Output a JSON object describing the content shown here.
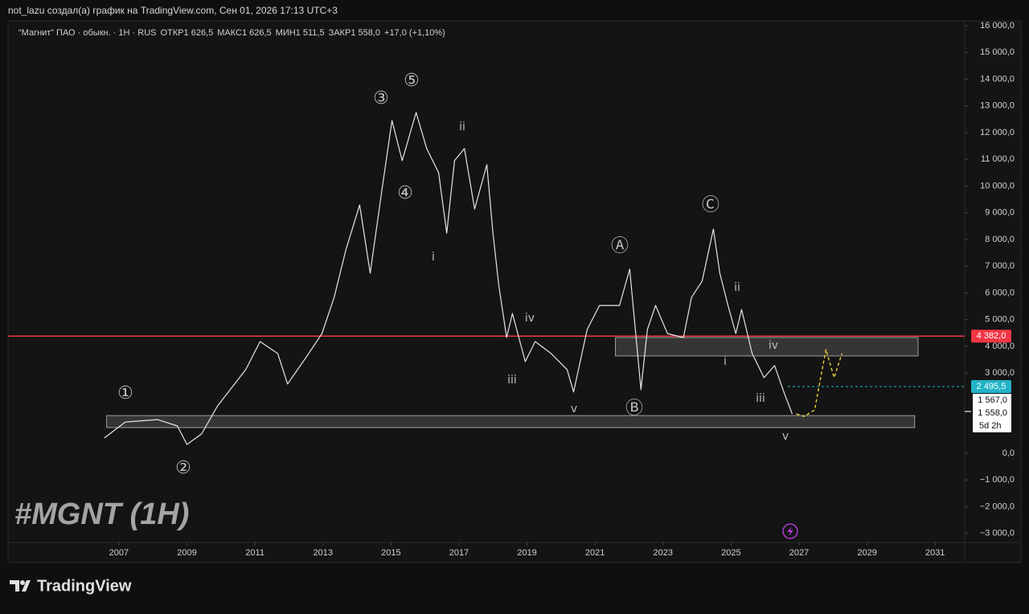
{
  "header": "not_lazu создал(а) график на TradingView.com, Сен 01, 2026 17:13 UTC+3",
  "chart_data": {
    "type": "line",
    "title": "“Магнит” ПАО · обыкн. · 1H · RUS",
    "ohlc": [
      {
        "label": "ОТКР",
        "value": "1 626,5"
      },
      {
        "label": "МАКС",
        "value": "1 626,5"
      },
      {
        "label": "МИН",
        "value": "1 511,5"
      },
      {
        "label": "ЗАКР",
        "value": "1 558,0"
      }
    ],
    "change": "+17,0 (+1,10%)",
    "watermark": "#MGNT (1H)",
    "xlim": [
      2003.74,
      2031.87
    ],
    "xticks": [
      2007,
      2009,
      2011,
      2013,
      2015,
      2017,
      2019,
      2021,
      2023,
      2025,
      2027,
      2029,
      2031
    ],
    "ylim": [
      -3340,
      16180
    ],
    "yticks": [
      {
        "value": 16000,
        "label": "16 000,0"
      },
      {
        "value": 15000,
        "label": "15 000,0"
      },
      {
        "value": 14000,
        "label": "14 000,0"
      },
      {
        "value": 13000,
        "label": "13 000,0"
      },
      {
        "value": 12000,
        "label": "12 000,0"
      },
      {
        "value": 11000,
        "label": "11 000,0"
      },
      {
        "value": 10000,
        "label": "10 000,0"
      },
      {
        "value": 9000,
        "label": "9 000,0"
      },
      {
        "value": 8000,
        "label": "8 000,0"
      },
      {
        "value": 7000,
        "label": "7 000,0"
      },
      {
        "value": 6000,
        "label": "6 000,0"
      },
      {
        "value": 5000,
        "label": "5 000,0"
      },
      {
        "value": 4000,
        "label": "4 000,0"
      },
      {
        "value": 3000,
        "label": "3 000,0"
      },
      {
        "value": {
          "value": 0,
          "label": "0,0"
        }
      },
      {
        "value": -1000,
        "label": "−1 000,0"
      },
      {
        "value": -2000,
        "label": "−2 000,0"
      },
      {
        "value": -3000,
        "label": "−3 000,0"
      }
    ],
    "series": [
      {
        "color": "#e6e6e6",
        "dashed": false,
        "x": [
          2006.57,
          2007.19,
          2008.13,
          2008.72,
          2009.0,
          2009.43,
          2009.9,
          2010.73,
          2011.15,
          2011.67,
          2011.96,
          2012.5,
          2012.97,
          2013.33,
          2013.68,
          2014.08,
          2014.39,
          2014.74,
          2015.03,
          2015.33,
          2015.74,
          2016.05,
          2016.4,
          2016.64,
          2016.87,
          2017.16,
          2017.46,
          2017.82,
          2018.0,
          2018.17,
          2018.4,
          2018.57,
          2018.95,
          2019.24,
          2019.71,
          2020.18,
          2020.37,
          2020.77,
          2021.13,
          2021.72,
          2022.02,
          2022.35,
          2022.54,
          2022.78,
          2023.13,
          2023.6,
          2023.84,
          2024.15,
          2024.48,
          2024.67,
          2024.91,
          2025.14,
          2025.31,
          2025.62,
          2025.97,
          2026.28,
          2026.57,
          2026.8
        ],
        "values": [
          570,
          1170,
          1260,
          1020,
          330,
          720,
          1770,
          3130,
          4180,
          3730,
          2590,
          3580,
          4480,
          5840,
          7640,
          9290,
          6740,
          9900,
          12450,
          10950,
          12750,
          11400,
          10500,
          8240,
          10950,
          11400,
          9140,
          10800,
          8240,
          6290,
          4330,
          5230,
          3430,
          4180,
          3730,
          3130,
          2290,
          4630,
          5530,
          5530,
          6890,
          2380,
          4630,
          5530,
          4480,
          4330,
          5840,
          6440,
          8390,
          6740,
          5530,
          4480,
          5380,
          3730,
          2830,
          3280,
          2230,
          1470
        ]
      },
      {
        "color": "#e8d23a",
        "dashed": true,
        "x": [
          2026.92,
          2027.15,
          2027.46,
          2027.79,
          2028.03,
          2028.26
        ],
        "values": [
          1470,
          1380,
          1620,
          3880,
          2830,
          3730
        ]
      }
    ],
    "hlines": [
      {
        "value": 4382,
        "label": "4 382,0",
        "color": "#f23645"
      },
      {
        "value": 2495.5,
        "label": "2 495,5",
        "color": "#22b4c8"
      }
    ],
    "price_labels": [
      {
        "value": 1567,
        "label": "1 567,0"
      },
      {
        "value": 1558,
        "label": "1 558,0"
      }
    ],
    "countdown": "5d 2h",
    "zones": [
      {
        "x": [
          2021.6,
          2030.5
        ],
        "y": [
          3640,
          4330
        ]
      },
      {
        "x": [
          2006.64,
          2030.4
        ],
        "y": [
          960,
          1410
        ]
      }
    ],
    "annotations": [
      "①",
      "②",
      "③",
      "④",
      "⑤",
      "i",
      "ii",
      "iii",
      "iv",
      "v",
      "Ⓐ",
      "Ⓑ",
      "Ⓒ",
      "i",
      "ii",
      "iii",
      "iv",
      "v"
    ]
  },
  "footer": "TradingView"
}
